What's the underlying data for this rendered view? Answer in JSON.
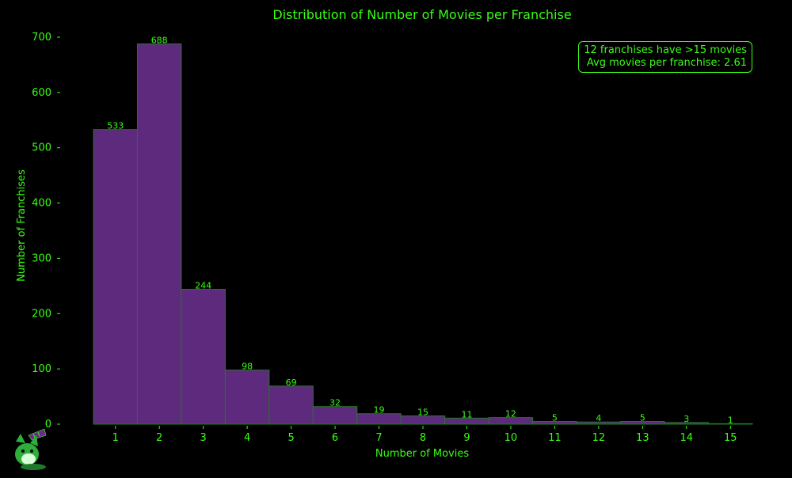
{
  "colors": {
    "background": "#000000",
    "text": "#39ff14",
    "bar_fill": "#5e2a7e",
    "bar_edge": "#1f7a1f"
  },
  "chart_data": {
    "type": "bar",
    "title": "Distribution of Number of Movies per Franchise",
    "xlabel": "Number of Movies",
    "ylabel": "Number of Franchises",
    "categories": [
      "1",
      "2",
      "3",
      "4",
      "5",
      "6",
      "7",
      "8",
      "9",
      "10",
      "11",
      "12",
      "13",
      "14",
      "15"
    ],
    "values": [
      533,
      688,
      244,
      98,
      69,
      32,
      19,
      15,
      11,
      12,
      5,
      4,
      5,
      3,
      1
    ],
    "yticks": [
      0,
      100,
      200,
      300,
      400,
      500,
      600,
      700
    ],
    "ylim": [
      0,
      720
    ],
    "grid": false,
    "annotation_lines": [
      "12 franchises have >15 movies",
      "Avg movies per franchise: 2.61"
    ]
  },
  "logo": {
    "icon": "fox-mascot-icon"
  }
}
